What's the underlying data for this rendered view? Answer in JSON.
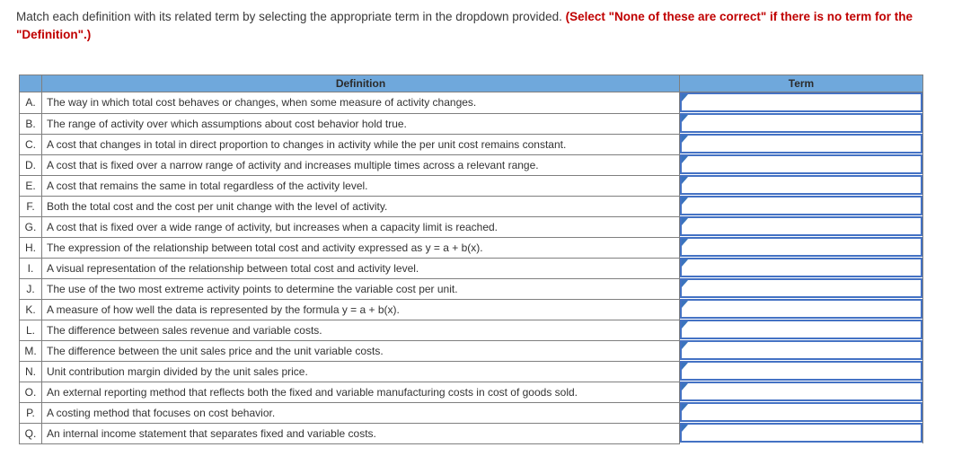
{
  "instructions": {
    "normal": "Match each definition with its related term by selecting the appropriate term in the dropdown provided. ",
    "emphasis": "(Select \"None of these are correct\" if there is no term for the \"Definition\".)"
  },
  "table": {
    "definition_header": "Definition",
    "term_header": "Term",
    "dropdown": {
      "selected_value": ""
    },
    "rows": [
      {
        "letter": "A.",
        "definition": "The way in which total cost behaves or changes, when some measure of activity changes."
      },
      {
        "letter": "B.",
        "definition": "The range of activity over which assumptions about cost behavior hold true."
      },
      {
        "letter": "C.",
        "definition": "A cost that changes in total in direct proportion to changes in activity while the per unit cost remains constant."
      },
      {
        "letter": "D.",
        "definition": "A cost that is fixed over a narrow range of activity and increases multiple times across a relevant range."
      },
      {
        "letter": "E.",
        "definition": "A cost that remains the same in total regardless of the activity level."
      },
      {
        "letter": "F.",
        "definition": "Both the total cost and the cost per unit change with the level of activity."
      },
      {
        "letter": "G.",
        "definition": "A cost that is fixed over a wide range of activity, but increases when a capacity limit is reached."
      },
      {
        "letter": "H.",
        "definition": "The expression of the relationship between total cost and activity expressed as y = a + b(x)."
      },
      {
        "letter": "I.",
        "definition": "A visual representation of the relationship between total cost and activity level."
      },
      {
        "letter": "J.",
        "definition": "The use of the two most extreme activity points to determine the variable cost per unit."
      },
      {
        "letter": "K.",
        "definition": "A measure of how well the data is represented by the formula y = a + b(x)."
      },
      {
        "letter": "L.",
        "definition": "The difference between sales revenue and variable costs."
      },
      {
        "letter": "M.",
        "definition": "The difference between the unit sales price and the unit variable costs."
      },
      {
        "letter": "N.",
        "definition": "Unit contribution margin divided by the unit sales price."
      },
      {
        "letter": "O.",
        "definition": "An external reporting method that reflects both the fixed and variable manufacturing costs in cost of goods sold."
      },
      {
        "letter": "P.",
        "definition": "A costing method that focuses on cost behavior."
      },
      {
        "letter": "Q.",
        "definition": "An internal income statement that separates fixed and variable costs."
      }
    ]
  },
  "colors": {
    "header_bg": "#6fa8dc",
    "table_border": "#7f7f7f",
    "dropdown_border": "#4472c4",
    "dropdown_caret": "#3a74bd",
    "emphasis_text": "#c00000",
    "body_text": "#333333"
  }
}
